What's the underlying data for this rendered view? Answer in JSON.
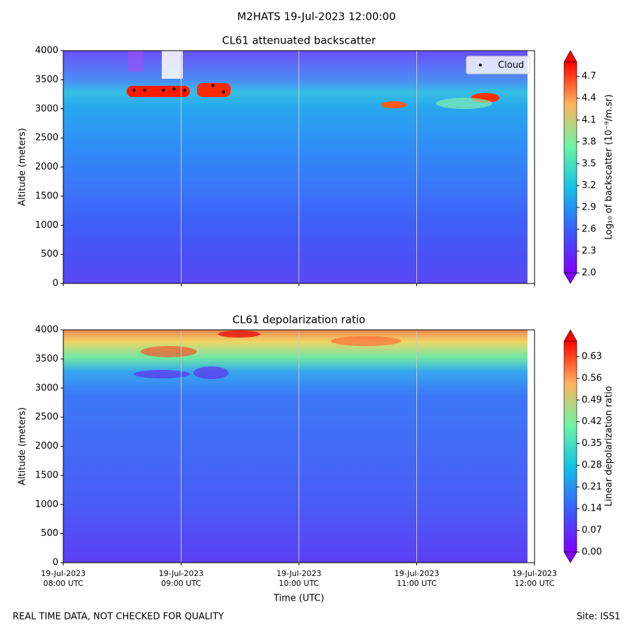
{
  "suptitle": "M2HATS 19-Jul-2023 12:00:00",
  "footer_left": "REAL TIME DATA, NOT CHECKED FOR QUALITY",
  "footer_right": "Site: ISS1",
  "chart_data": [
    {
      "type": "contour",
      "title": "CL61 attenuated backscatter",
      "y_label": "Altitude (meters)",
      "xlim": [
        8,
        12
      ],
      "xticks": [
        8,
        9,
        10,
        11,
        12
      ],
      "ylim": [
        0,
        4000
      ],
      "yticks": [
        0,
        500,
        1000,
        1500,
        2000,
        2500,
        3000,
        3500,
        4000
      ],
      "grid": true,
      "colormap": "rainbow",
      "legend": "upper right",
      "colorbar_label": "Log₁₀ of backscatter (10⁻⁹/m.sr)",
      "clim": [
        2.0,
        4.9
      ],
      "cticks": [
        {
          "value": 2.0,
          "label": "2.0"
        },
        {
          "value": 2.3,
          "label": "2.3"
        },
        {
          "value": 2.6,
          "label": "2.6"
        },
        {
          "value": 2.9,
          "label": "2.9"
        },
        {
          "value": 3.2,
          "label": "3.2"
        },
        {
          "value": 3.5,
          "label": "3.5"
        },
        {
          "value": 3.8,
          "label": "3.8"
        },
        {
          "value": 4.1,
          "label": "4.1"
        },
        {
          "value": 4.4,
          "label": "4.4"
        },
        {
          "value": 4.7,
          "label": "4.7"
        }
      ],
      "series": [
        {
          "name": "Cloud",
          "color": "#000000",
          "x": [
            8.6,
            8.69,
            8.85,
            8.94,
            9.03,
            9.27,
            9.36
          ],
          "values": [
            3320,
            3320,
            3320,
            3340,
            3320,
            3400,
            3290
          ]
        }
      ]
    },
    {
      "type": "contour",
      "title": "CL61 depolarization ratio",
      "y_label": "Altitude (meters)",
      "x_label": "Time (UTC)",
      "xlim": [
        8,
        12
      ],
      "xticks": [
        {
          "value": 8,
          "label": "19-Jul-2023\n08:00 UTC"
        },
        {
          "value": 9,
          "label": "19-Jul-2023\n09:00 UTC"
        },
        {
          "value": 10,
          "label": "19-Jul-2023\n10:00 UTC"
        },
        {
          "value": 11,
          "label": "19-Jul-2023\n11:00 UTC"
        },
        {
          "value": 12,
          "label": "19-Jul-2023\n12:00 UTC"
        }
      ],
      "ylim": [
        0,
        4000
      ],
      "yticks": [
        0,
        500,
        1000,
        1500,
        2000,
        2500,
        3000,
        3500,
        4000
      ],
      "grid": true,
      "colormap": "rainbow",
      "colorbar_label": "Linear depolarization ratio",
      "clim": [
        0,
        0.68
      ],
      "cticks": [
        {
          "value": 0,
          "label": "0.00"
        },
        {
          "value": 0.07,
          "label": "0.07"
        },
        {
          "value": 0.14,
          "label": "0.14"
        },
        {
          "value": 0.21,
          "label": "0.21"
        },
        {
          "value": 0.28,
          "label": "0.28"
        },
        {
          "value": 0.35,
          "label": "0.35"
        },
        {
          "value": 0.42,
          "label": "0.42"
        },
        {
          "value": 0.49,
          "label": "0.49"
        },
        {
          "value": 0.56,
          "label": "0.56"
        },
        {
          "value": 0.63,
          "label": "0.63"
        }
      ]
    }
  ]
}
